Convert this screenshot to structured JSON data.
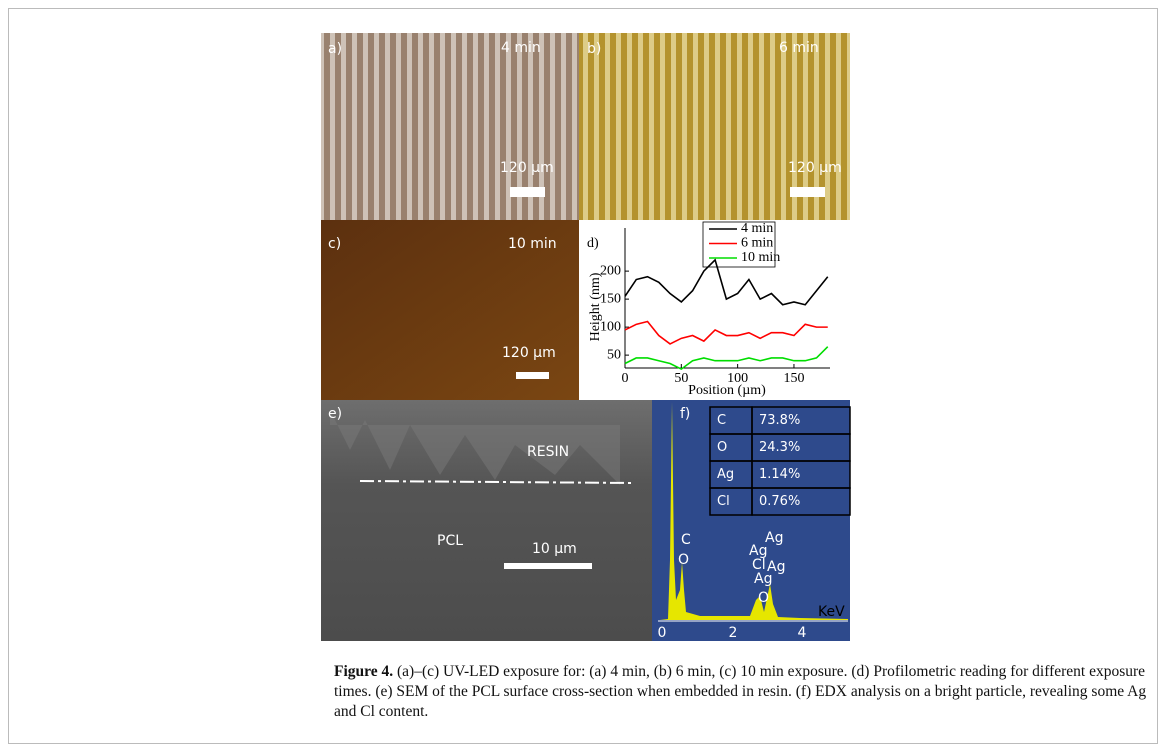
{
  "panels": {
    "a": {
      "label": "a)",
      "time": "4 min",
      "scale": "120 µm"
    },
    "b": {
      "label": "b)",
      "time": "6 min",
      "scale": "120 µm"
    },
    "c": {
      "label": "c)",
      "time": "10 min",
      "scale": "120 µm"
    },
    "e": {
      "label": "e)",
      "top": "RESIN",
      "bottom": "PCL",
      "scale": "10 µm"
    },
    "f": {
      "label": "f)",
      "table": [
        [
          "C",
          "73.8%"
        ],
        [
          "O",
          "24.3%"
        ],
        [
          "Ag",
          "1.14%"
        ],
        [
          "Cl",
          "0.76%"
        ]
      ],
      "peaks": [
        "C",
        "O",
        "Ag",
        "Ag",
        "Cl",
        "Ag",
        "Ag",
        "O"
      ],
      "xticks": [
        0,
        2,
        4
      ],
      "x_unit": "KeV"
    }
  },
  "chart_data": {
    "type": "line",
    "label": "d)",
    "x_label": "Position (µm)",
    "y_label": "Height (nm)",
    "x": [
      0,
      10,
      20,
      30,
      40,
      50,
      60,
      70,
      80,
      90,
      100,
      110,
      120,
      130,
      140,
      150,
      160,
      170,
      180
    ],
    "series": [
      {
        "name": "4 min",
        "color": "#000000",
        "values": [
          155,
          185,
          190,
          180,
          160,
          145,
          165,
          200,
          220,
          150,
          160,
          185,
          150,
          160,
          140,
          145,
          140,
          165,
          190
        ]
      },
      {
        "name": "6 min",
        "color": "#ff0000",
        "values": [
          95,
          105,
          110,
          85,
          70,
          80,
          85,
          75,
          95,
          85,
          85,
          90,
          80,
          90,
          90,
          85,
          105,
          100,
          100
        ]
      },
      {
        "name": "10 min",
        "color": "#00dd00",
        "values": [
          35,
          45,
          45,
          40,
          35,
          25,
          40,
          45,
          40,
          40,
          40,
          45,
          40,
          45,
          45,
          40,
          40,
          45,
          65
        ]
      }
    ],
    "xlim": [
      0,
      182
    ],
    "ylim": [
      27,
      277
    ],
    "xticks": [
      0,
      50,
      100,
      150
    ],
    "yticks": [
      50,
      100,
      150,
      200
    ]
  },
  "caption": {
    "label": "Figure 4.",
    "text": "(a)–(c) UV-LED exposure for: (a) 4 min, (b) 6 min, (c) 10 min exposure. (d) Profilometric reading for different exposure times. (e) SEM of the PCL surface cross-section when embedded in resin. (f) EDX analysis on a bright particle, revealing some Ag and Cl content."
  }
}
